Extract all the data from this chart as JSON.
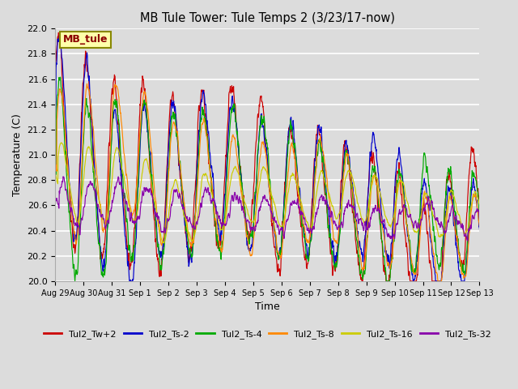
{
  "title": "MB Tule Tower: Tule Temps 2 (3/23/17-now)",
  "xlabel": "Time",
  "ylabel": "Temperature (C)",
  "ylim": [
    20.0,
    22.0
  ],
  "yticks": [
    20.0,
    20.2,
    20.4,
    20.6,
    20.8,
    21.0,
    21.2,
    21.4,
    21.6,
    21.8,
    22.0
  ],
  "bg_color": "#dcdcdc",
  "plot_bg_color": "#dcdcdc",
  "series": [
    {
      "label": "Tul2_Tw+2",
      "color": "#cc0000"
    },
    {
      "label": "Tul2_Ts-2",
      "color": "#0000cc"
    },
    {
      "label": "Tul2_Ts-4",
      "color": "#00aa00"
    },
    {
      "label": "Tul2_Ts-8",
      "color": "#ff8800"
    },
    {
      "label": "Tul2_Ts-16",
      "color": "#cccc00"
    },
    {
      "label": "Tul2_Ts-32",
      "color": "#8800aa"
    }
  ],
  "xtick_labels": [
    "Aug 29",
    "Aug 30",
    "Aug 31",
    "Sep 1",
    "Sep 2",
    "Sep 3",
    "Sep 4",
    "Sep 5",
    "Sep 6",
    "Sep 7",
    "Sep 8",
    "Sep 9",
    "Sep 10",
    "Sep 11",
    "Sep 12",
    "Sep 13"
  ],
  "annotation_box_label": "MB_tule",
  "annotation_box_color": "#ffffaa",
  "annotation_box_edge_color": "#888800"
}
